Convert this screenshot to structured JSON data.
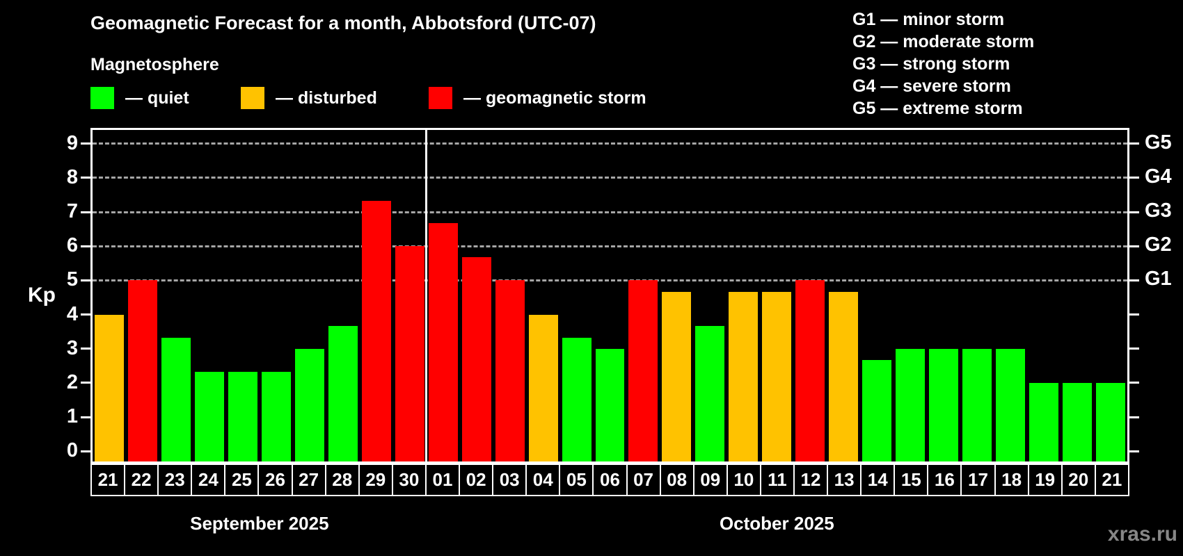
{
  "title": "Geomagnetic Forecast for a month, Abbotsford (UTC-07)",
  "subtitle": "Magnetosphere",
  "legend": {
    "items": [
      {
        "key": "quiet",
        "label": "— quiet",
        "color": "#00ff00"
      },
      {
        "key": "disturbed",
        "label": "— disturbed",
        "color": "#ffc200"
      },
      {
        "key": "storm",
        "label": "— geomagnetic storm",
        "color": "#ff0000"
      }
    ]
  },
  "storm_scale": {
    "items": [
      {
        "label": "G1 — minor storm"
      },
      {
        "label": "G2 — moderate storm"
      },
      {
        "label": "G3 — strong storm"
      },
      {
        "label": "G4 — severe storm"
      },
      {
        "label": "G5 — extreme storm"
      }
    ]
  },
  "watermark": "xras.ru",
  "chart_data": {
    "type": "bar",
    "title": "Geomagnetic Forecast for a month, Abbotsford (UTC-07)",
    "ylabel": "Kp",
    "ylim": [
      -0.3,
      9.4
    ],
    "yticks": [
      0,
      1,
      2,
      3,
      4,
      5,
      6,
      7,
      8,
      9
    ],
    "gridlines_at": [
      5,
      6,
      7,
      8,
      9
    ],
    "grid": "horizontal dashed lines at storm levels G1-G5",
    "right_axis_labels": [
      {
        "kp": 5,
        "label": "G1"
      },
      {
        "kp": 6,
        "label": "G2"
      },
      {
        "kp": 7,
        "label": "G3"
      },
      {
        "kp": 8,
        "label": "G4"
      },
      {
        "kp": 9,
        "label": "G5"
      }
    ],
    "categories": [
      "21",
      "22",
      "23",
      "24",
      "25",
      "26",
      "27",
      "28",
      "29",
      "30",
      "01",
      "02",
      "03",
      "04",
      "05",
      "06",
      "07",
      "08",
      "09",
      "10",
      "11",
      "12",
      "13",
      "14",
      "15",
      "16",
      "17",
      "18",
      "19",
      "20",
      "21"
    ],
    "values": [
      4.0,
      5.0,
      3.33,
      2.33,
      2.33,
      2.33,
      3.0,
      3.67,
      7.33,
      6.0,
      6.67,
      5.67,
      5.0,
      4.0,
      3.33,
      3.0,
      5.0,
      4.67,
      3.67,
      4.67,
      4.67,
      5.0,
      4.67,
      2.67,
      3.0,
      3.0,
      3.0,
      3.0,
      2.0,
      2.0,
      2.0
    ],
    "statuses": [
      "disturbed",
      "storm",
      "quiet",
      "quiet",
      "quiet",
      "quiet",
      "quiet",
      "quiet",
      "storm",
      "storm",
      "storm",
      "storm",
      "storm",
      "disturbed",
      "quiet",
      "quiet",
      "storm",
      "disturbed",
      "quiet",
      "disturbed",
      "disturbed",
      "storm",
      "disturbed",
      "quiet",
      "quiet",
      "quiet",
      "quiet",
      "quiet",
      "quiet",
      "quiet",
      "quiet"
    ],
    "status_colors": {
      "quiet": "#00ff00",
      "disturbed": "#ffc200",
      "storm": "#ff0000"
    },
    "months": [
      {
        "label": "September 2025",
        "start_index": 0,
        "end_index": 9
      },
      {
        "label": "October 2025",
        "start_index": 10,
        "end_index": 30
      }
    ],
    "month_separator_after_index": 9
  }
}
